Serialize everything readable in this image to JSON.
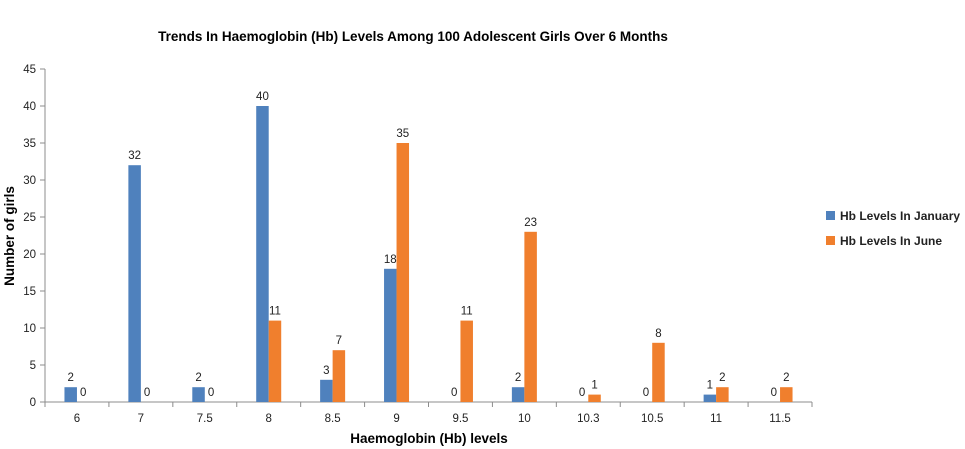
{
  "chart_data": {
    "type": "bar",
    "title": "Trends In Haemoglobin (Hb) Levels Among 100 Adolescent Girls Over 6 Months",
    "xlabel": "Haemoglobin (Hb) levels",
    "ylabel": "Number of girls",
    "categories": [
      "6",
      "7",
      "7.5",
      "8",
      "8.5",
      "9",
      "9.5",
      "10",
      "10.3",
      "10.5",
      "11",
      "11.5"
    ],
    "series": [
      {
        "name": "Hb Levels In January",
        "color": "#4F81BD",
        "values": [
          2,
          32,
          2,
          40,
          3,
          18,
          0,
          2,
          0,
          0,
          1,
          0
        ]
      },
      {
        "name": "Hb Levels In June",
        "color": "#F07F2D",
        "values": [
          0,
          0,
          0,
          11,
          7,
          35,
          11,
          23,
          1,
          8,
          2,
          2
        ]
      }
    ],
    "ylim": [
      0,
      45
    ],
    "yticks": [
      0,
      5,
      10,
      15,
      20,
      25,
      30,
      35,
      40,
      45
    ],
    "grid": false,
    "legend": "right",
    "data_labels": true
  }
}
